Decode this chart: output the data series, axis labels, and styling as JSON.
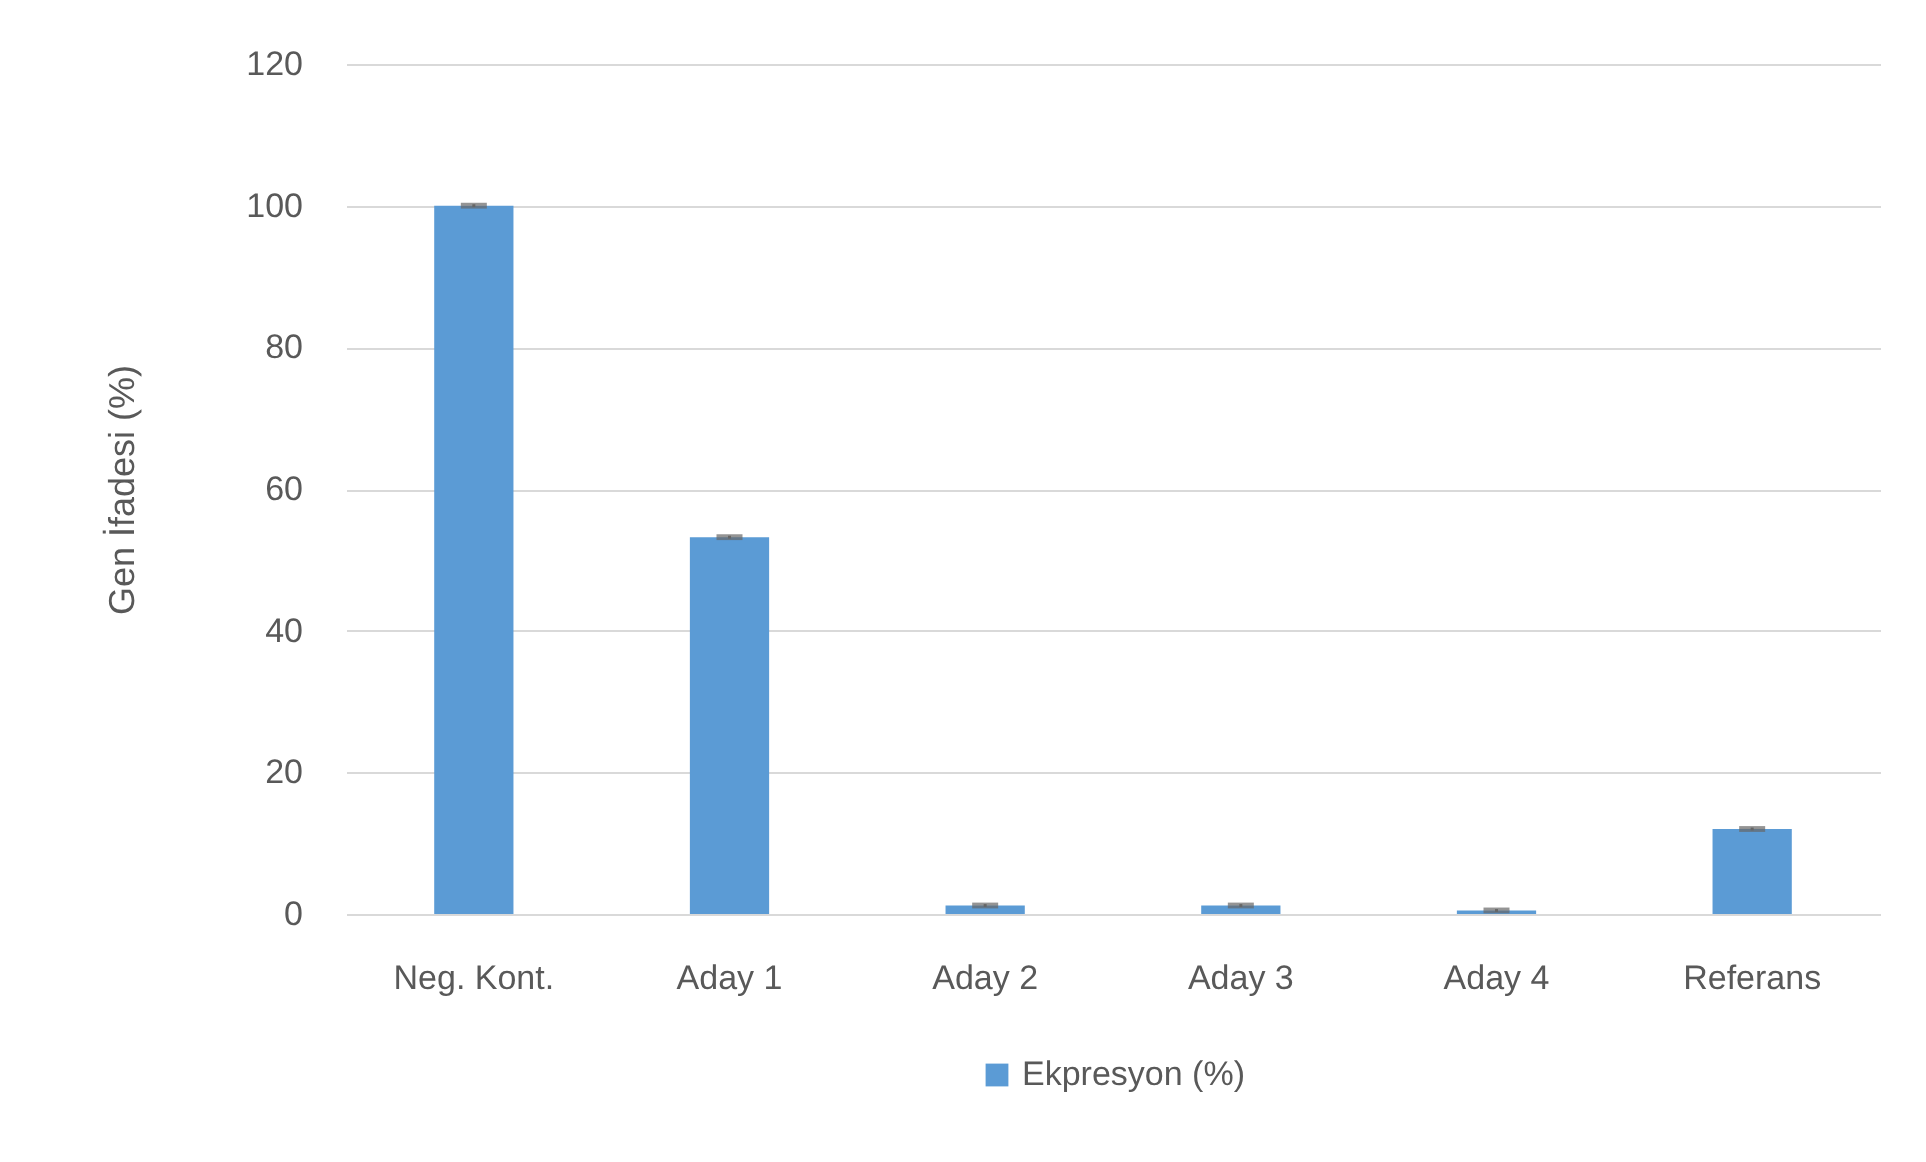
{
  "chart_data": {
    "type": "bar",
    "ylabel": "Gen İfadesi (%)",
    "categories": [
      "Neg. Kont.",
      "Aday 1",
      "Aday 2",
      "Aday 3",
      "Aday 4",
      "Referans"
    ],
    "series": [
      {
        "name": "Ekpresyon (%)",
        "color": "#5b9bd5",
        "values": [
          100,
          53.2,
          1.2,
          1.2,
          0.5,
          12
        ],
        "errors": [
          0.2,
          0.2,
          0.2,
          0.2,
          0.2,
          0.2
        ]
      }
    ],
    "ylim": [
      0,
      120
    ],
    "yticks": [
      0,
      20,
      40,
      60,
      80,
      100,
      120
    ],
    "grid": "y",
    "legend": "bottom"
  }
}
